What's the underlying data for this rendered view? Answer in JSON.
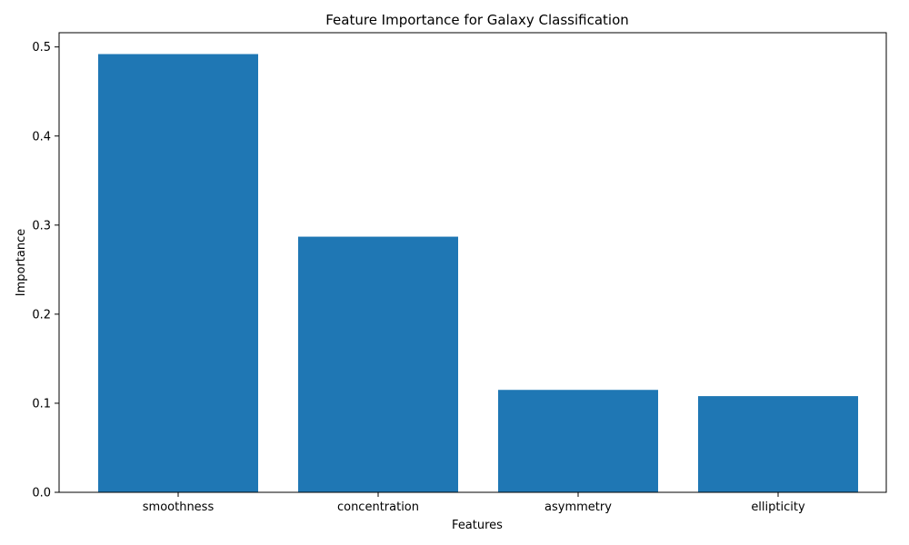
{
  "chart_data": {
    "type": "bar",
    "title": "Feature Importance for Galaxy Classification",
    "xlabel": "Features",
    "ylabel": "Importance",
    "categories": [
      "smoothness",
      "concentration",
      "asymmetry",
      "ellipticity"
    ],
    "values": [
      0.492,
      0.287,
      0.115,
      0.108
    ],
    "ylim": [
      0,
      0.516
    ],
    "yticks": [
      0.0,
      0.1,
      0.2,
      0.3,
      0.4,
      0.5
    ],
    "ytick_labels": [
      "0.0",
      "0.1",
      "0.2",
      "0.3",
      "0.4",
      "0.5"
    ],
    "grid": false,
    "legend": "none",
    "bar_color": "#1f77b4"
  }
}
